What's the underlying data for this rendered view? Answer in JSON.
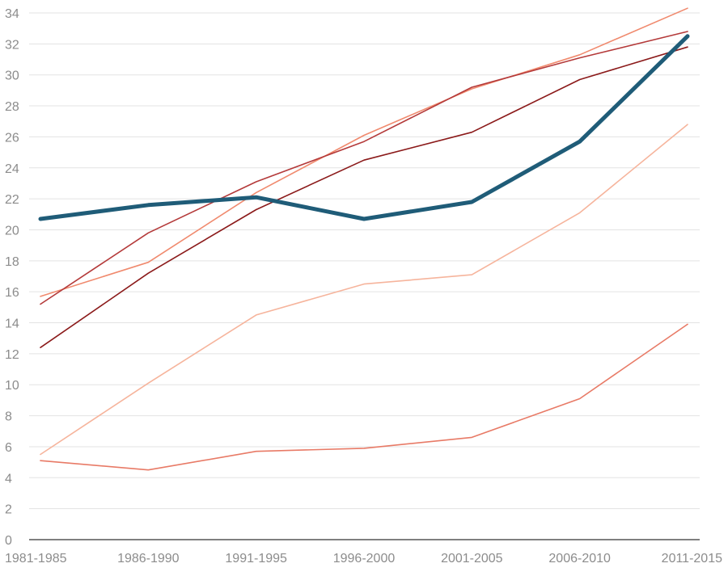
{
  "chart_data": {
    "type": "line",
    "title": "",
    "xlabel": "",
    "ylabel": "",
    "categories": [
      "1981-1985",
      "1986-1990",
      "1991-1995",
      "1996-2000",
      "2001-2005",
      "2006-2010",
      "2011-2015"
    ],
    "ylim": [
      0,
      34
    ],
    "yticks": [
      0,
      2,
      4,
      6,
      8,
      10,
      12,
      14,
      16,
      18,
      20,
      22,
      24,
      26,
      28,
      30,
      32,
      34
    ],
    "grid": true,
    "legend": "none",
    "series": [
      {
        "color": "#f08a6e",
        "highlight": false,
        "values": [
          15.7,
          17.9,
          22.4,
          26.1,
          29.1,
          31.3,
          34.3
        ]
      },
      {
        "color": "#b43a3a",
        "highlight": false,
        "values": [
          15.2,
          19.8,
          23.1,
          25.7,
          29.2,
          31.1,
          32.8
        ]
      },
      {
        "color": "#8b1a1a",
        "highlight": false,
        "values": [
          12.4,
          17.2,
          21.3,
          24.5,
          26.3,
          29.7,
          31.8
        ]
      },
      {
        "color": "#f6b49c",
        "highlight": false,
        "values": [
          5.5,
          10.1,
          14.5,
          16.5,
          17.1,
          21.1,
          26.8
        ]
      },
      {
        "color": "#e87a66",
        "highlight": false,
        "values": [
          5.1,
          4.5,
          5.7,
          5.9,
          6.6,
          9.1,
          13.9
        ]
      },
      {
        "color": "#1f5c78",
        "highlight": true,
        "values": [
          20.7,
          21.6,
          22.1,
          20.7,
          21.8,
          25.7,
          32.5
        ]
      }
    ]
  }
}
